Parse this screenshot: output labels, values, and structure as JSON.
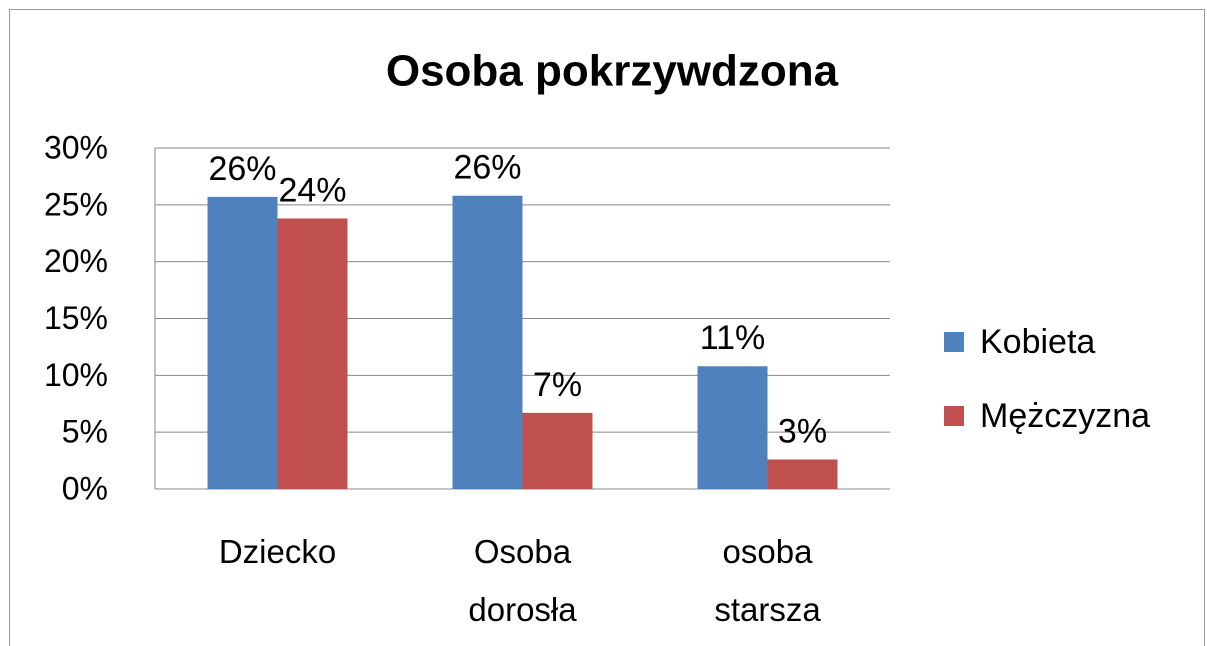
{
  "chart_data": {
    "type": "bar",
    "title": "Osoba pokrzywdzona",
    "categories": [
      "Dziecko",
      "Osoba dorosła",
      "osoba starsza"
    ],
    "series": [
      {
        "name": "Kobieta",
        "color": "#4f81bd",
        "values": [
          25.7,
          25.8,
          10.8
        ],
        "value_labels": [
          "26%",
          "26%",
          "11%"
        ]
      },
      {
        "name": "Mężczyzna",
        "color": "#c0504d",
        "values": [
          23.8,
          6.7,
          2.6
        ],
        "value_labels": [
          "24%",
          "7%",
          "3%"
        ]
      }
    ],
    "ylim": [
      0,
      30
    ],
    "yticks": [
      {
        "value": 0,
        "label": "0%"
      },
      {
        "value": 5,
        "label": "5%"
      },
      {
        "value": 10,
        "label": "10%"
      },
      {
        "value": 15,
        "label": "15%"
      },
      {
        "value": 20,
        "label": "20%"
      },
      {
        "value": 25,
        "label": "25%"
      },
      {
        "value": 30,
        "label": "30%"
      }
    ],
    "grid": true,
    "legend": "right"
  }
}
